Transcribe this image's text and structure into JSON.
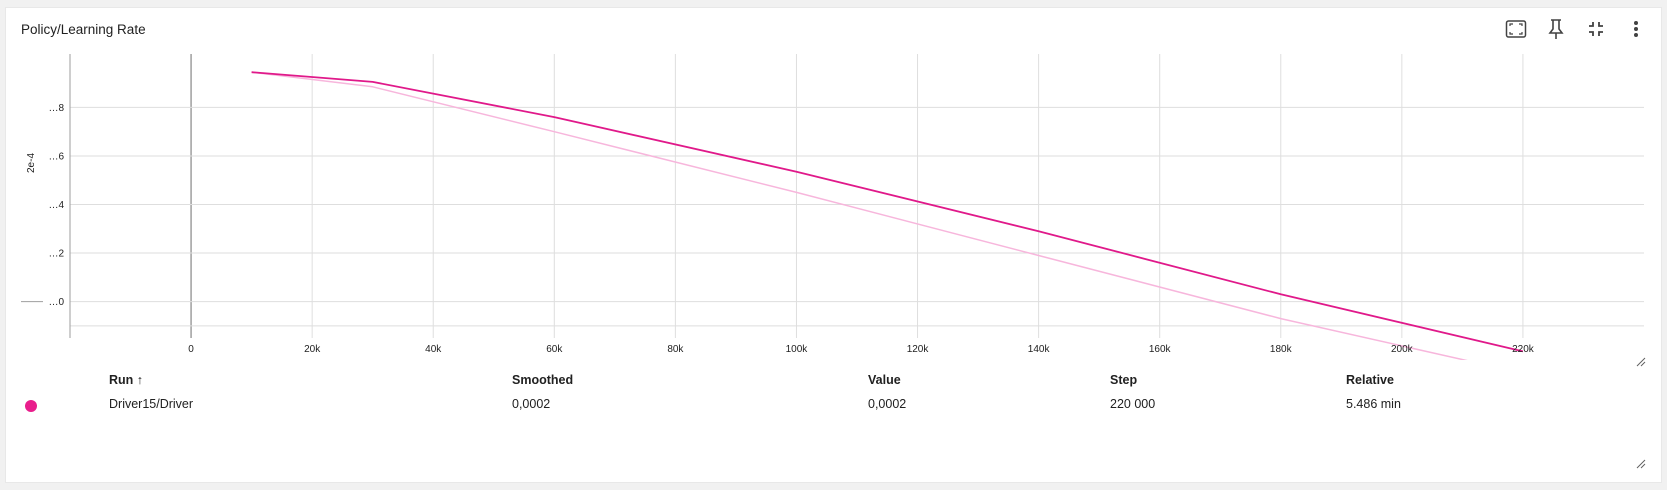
{
  "card": {
    "title": "Policy/Learning Rate"
  },
  "toolbar": {
    "icons": [
      "fit-to-data-icon",
      "pin-icon",
      "collapse-icon",
      "more-vert-icon"
    ]
  },
  "colors": {
    "accent": "#e91e8c",
    "smoothed_line": "#e0198a",
    "raw_line": "#f7b6dc",
    "grid": "#dedede",
    "axis": "#9e9e9e"
  },
  "chart_data": {
    "type": "line",
    "title": "Policy/Learning Rate",
    "xlabel": "",
    "ylabel": "2e-4",
    "ylabel_note": "2e-4",
    "xlim": [
      -20000,
      240000
    ],
    "ylim": [
      -0.15,
      1.02
    ],
    "x_ticks": [
      0,
      20000,
      40000,
      60000,
      80000,
      100000,
      120000,
      140000,
      160000,
      180000,
      200000,
      220000
    ],
    "x_tick_labels": [
      "0",
      "20k",
      "40k",
      "60k",
      "80k",
      "100k",
      "120k",
      "140k",
      "160k",
      "180k",
      "200k",
      "220k"
    ],
    "y_ticks": [
      0.0,
      0.2,
      0.4,
      0.6,
      0.8
    ],
    "y_tick_labels": [
      "…0",
      "…2",
      "…4",
      "…6",
      "…8"
    ],
    "grid": true,
    "series": [
      {
        "name": "",
        "x": [
          10000,
          30000,
          60000,
          100000,
          140000,
          180000,
          220000
        ],
        "y": [
          0.945,
          0.905,
          0.76,
          0.535,
          0.29,
          0.03,
          -0.205
        ]
      },
      {
        "name": "",
        "x": [
          10000,
          30000,
          60000,
          100000,
          140000,
          180000,
          220000
        ],
        "y": [
          0.945,
          0.885,
          0.7,
          0.45,
          0.19,
          -0.07,
          -0.295
        ]
      }
    ]
  },
  "table": {
    "headers": {
      "run": "Run ↑",
      "smoothed": "Smoothed",
      "value": "Value",
      "step": "Step",
      "relative": "Relative"
    },
    "rows": [
      {
        "run": "Driver15/Driver",
        "smoothed": "0,0002",
        "value": "0,0002",
        "step": "220 000",
        "relative": "5.486 min",
        "color": "#e91e8c"
      }
    ]
  }
}
